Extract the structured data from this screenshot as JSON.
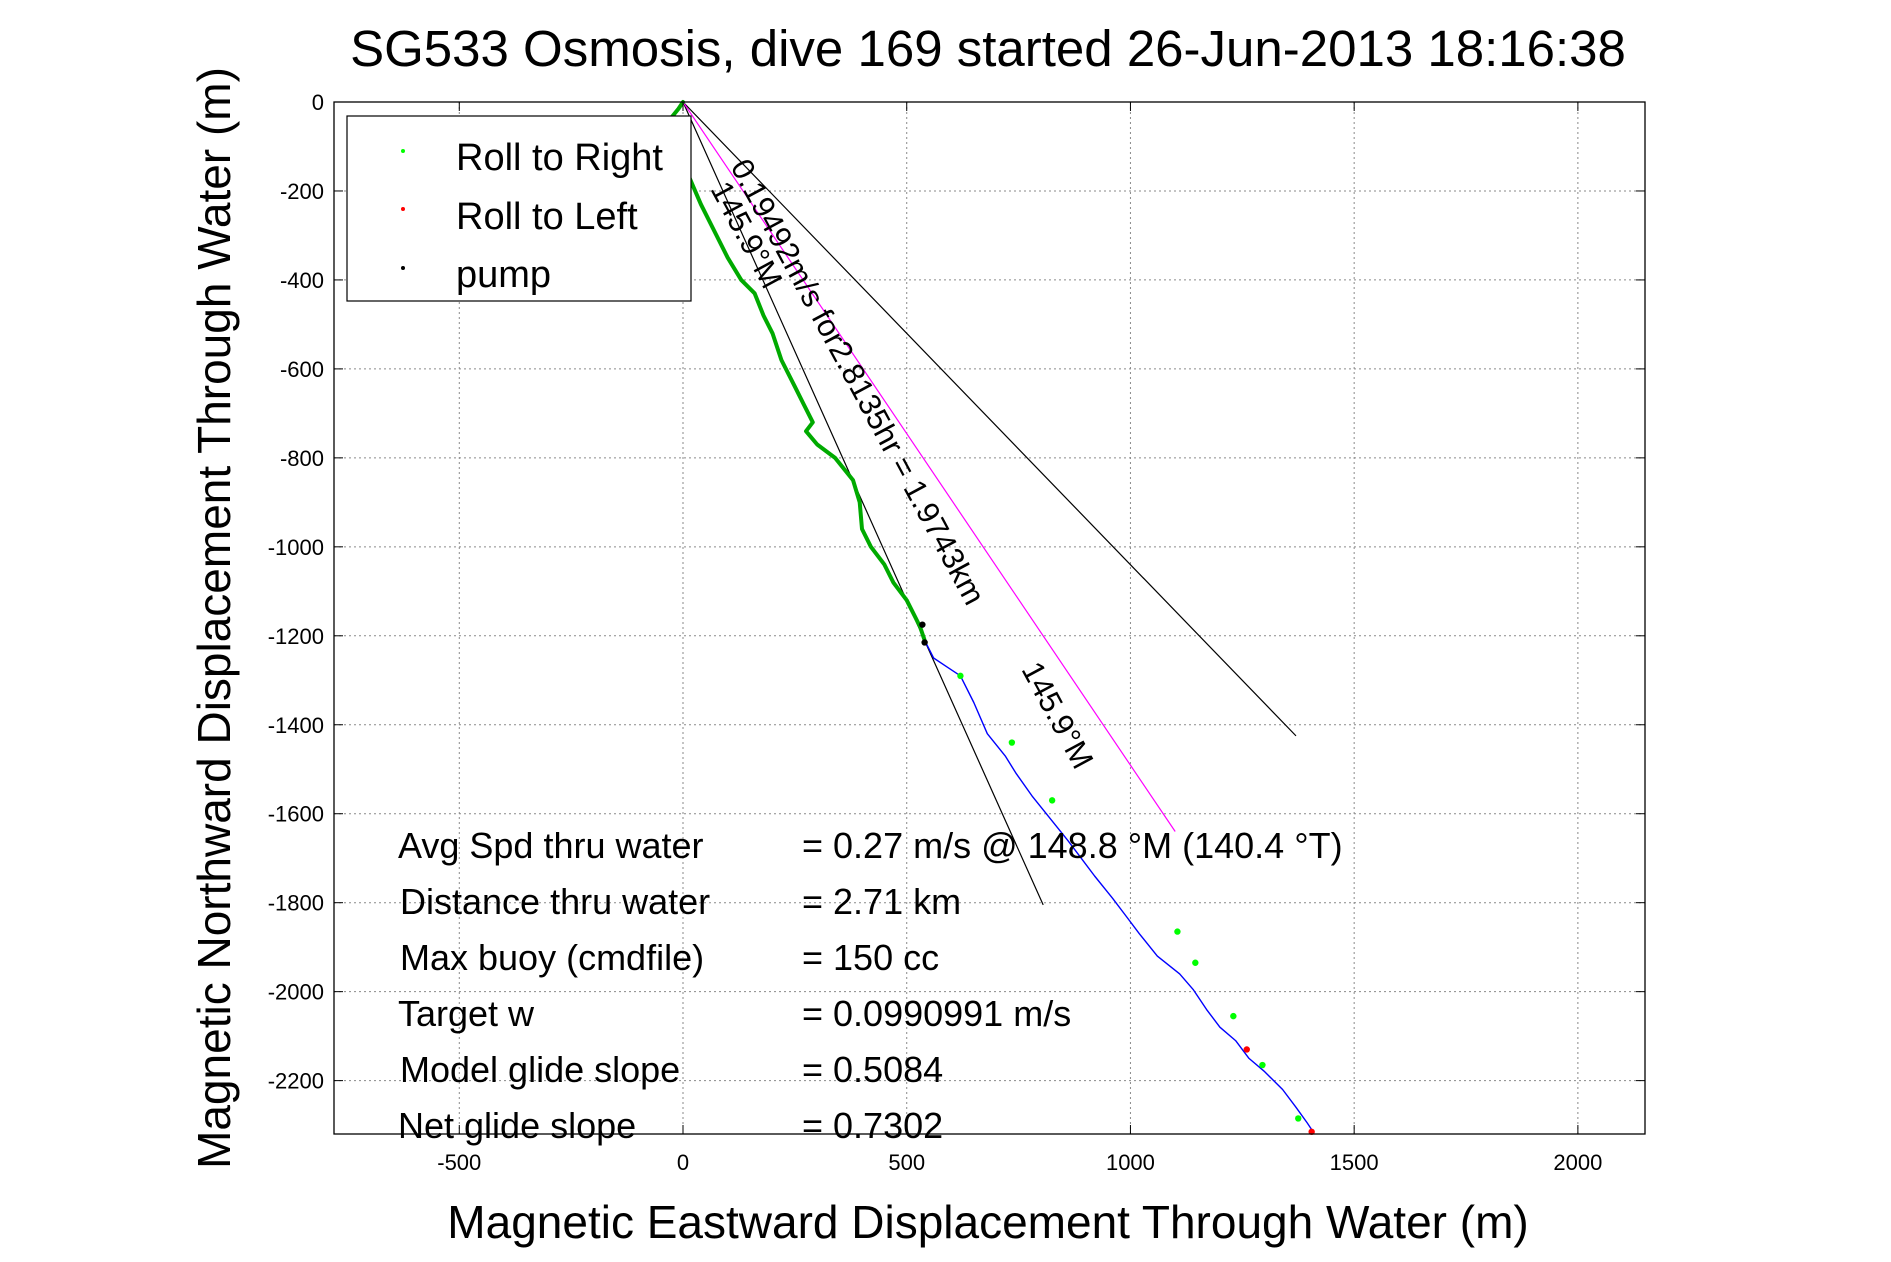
{
  "chart_data": {
    "type": "line",
    "title": "SG533 Osmosis, dive 169 started 26-Jun-2013 18:16:38",
    "xlabel": "Magnetic Eastward Displacement Through Water (m)",
    "ylabel": "Magnetic Northward Displacement Through Water (m)",
    "xlim": [
      -780,
      2150
    ],
    "ylim": [
      -2320,
      0
    ],
    "xticks": [
      -500,
      0,
      500,
      1000,
      1500,
      2000
    ],
    "xtick_labels": [
      "-500",
      "0",
      "500",
      "1000",
      "1500",
      "2000"
    ],
    "yticks": [
      0,
      -200,
      -400,
      -600,
      -800,
      -1000,
      -1200,
      -1400,
      -1600,
      -1800,
      -2000,
      -2200
    ],
    "ytick_labels": [
      "0",
      "-200",
      "-400",
      "-600",
      "-800",
      "-1000",
      "-1200",
      "-1400",
      "-1600",
      "-1800",
      "-2000",
      "-2200"
    ],
    "grid": true,
    "legend": {
      "position": "top-left",
      "entries": [
        {
          "label": "Roll to Right",
          "color": "#00ff00"
        },
        {
          "label": "Roll to Left",
          "color": "#ff0000"
        },
        {
          "label": "pump",
          "color": "#000000"
        }
      ]
    },
    "series": [
      {
        "color": "#00aa00",
        "style": "thick",
        "x": [
          0,
          -10,
          -30,
          -15,
          10,
          40,
          70,
          100,
          130,
          160,
          180,
          200,
          220,
          250,
          270,
          290,
          275,
          300,
          340,
          380,
          395,
          400,
          420,
          450,
          470,
          500,
          520,
          530,
          540
        ],
        "y": [
          0,
          -15,
          -40,
          -120,
          -160,
          -230,
          -290,
          -350,
          -400,
          -430,
          -480,
          -520,
          -580,
          -640,
          -680,
          -720,
          -740,
          -770,
          -800,
          -850,
          -900,
          -960,
          -1000,
          -1040,
          -1080,
          -1120,
          -1160,
          -1180,
          -1210
        ]
      },
      {
        "color": "#0000ff",
        "style": "thin",
        "x": [
          540,
          560,
          590,
          620,
          650,
          680,
          720,
          745,
          780,
          820,
          860,
          890,
          920,
          960,
          990,
          1020,
          1060,
          1110,
          1140,
          1170,
          1200,
          1235,
          1265,
          1300,
          1340,
          1370,
          1395,
          1405
        ],
        "y": [
          -1210,
          -1250,
          -1270,
          -1290,
          -1350,
          -1420,
          -1470,
          -1510,
          -1560,
          -1610,
          -1660,
          -1700,
          -1740,
          -1790,
          -1830,
          -1870,
          -1920,
          -1960,
          -1995,
          -2040,
          -2080,
          -2110,
          -2150,
          -2180,
          -2220,
          -2260,
          -2295,
          -2310
        ]
      }
    ],
    "markers": [
      {
        "kind": "roll-right",
        "color": "#00ff00",
        "x": [
          620,
          735,
          825,
          1105,
          1145,
          1230,
          1295,
          1375
        ],
        "y": [
          -1290,
          -1440,
          -1570,
          -1865,
          -1935,
          -2055,
          -2165,
          -2285
        ]
      },
      {
        "kind": "roll-left",
        "color": "#ff0000",
        "x": [
          1260,
          1405
        ],
        "y": [
          -2130,
          -2315
        ]
      },
      {
        "kind": "pump",
        "color": "#000000",
        "x": [
          535,
          540
        ],
        "y": [
          -1175,
          -1215
        ]
      }
    ],
    "reference_lines": [
      {
        "color": "#000000",
        "x": [
          0,
          805
        ],
        "y": [
          0,
          -1805
        ]
      },
      {
        "color": "#000000",
        "x": [
          0,
          1370
        ],
        "y": [
          0,
          -1425
        ]
      },
      {
        "color": "#ff00ff",
        "x": [
          0,
          1100
        ],
        "y": [
          0,
          -1640
        ]
      }
    ],
    "annotations": [
      {
        "text": "0.19492m/s for2.8135hr = 1.9743km",
        "x": 105,
        "y": -145,
        "angle_deg": 61.7
      },
      {
        "text": "145.9°M",
        "x": 60,
        "y": -195,
        "angle_deg": 61.7
      },
      {
        "text": "145.9°M",
        "x": 755,
        "y": -1275,
        "angle_deg": 61.7
      }
    ],
    "stats": [
      {
        "label": "Avg Spd thru water",
        "value": "=  0.27 m/s @ 148.8 °M (140.4 °T)"
      },
      {
        "label": "Distance thru water",
        "value": "=  2.71 km"
      },
      {
        "label": "Max buoy (cmdfile)",
        "value": "= 150 cc"
      },
      {
        "label": "Target w",
        "value": "= 0.0990991 m/s"
      },
      {
        "label": "Model glide slope",
        "value": "= 0.5084"
      },
      {
        "label": "Net glide slope",
        "value": "= 0.7302"
      }
    ]
  }
}
